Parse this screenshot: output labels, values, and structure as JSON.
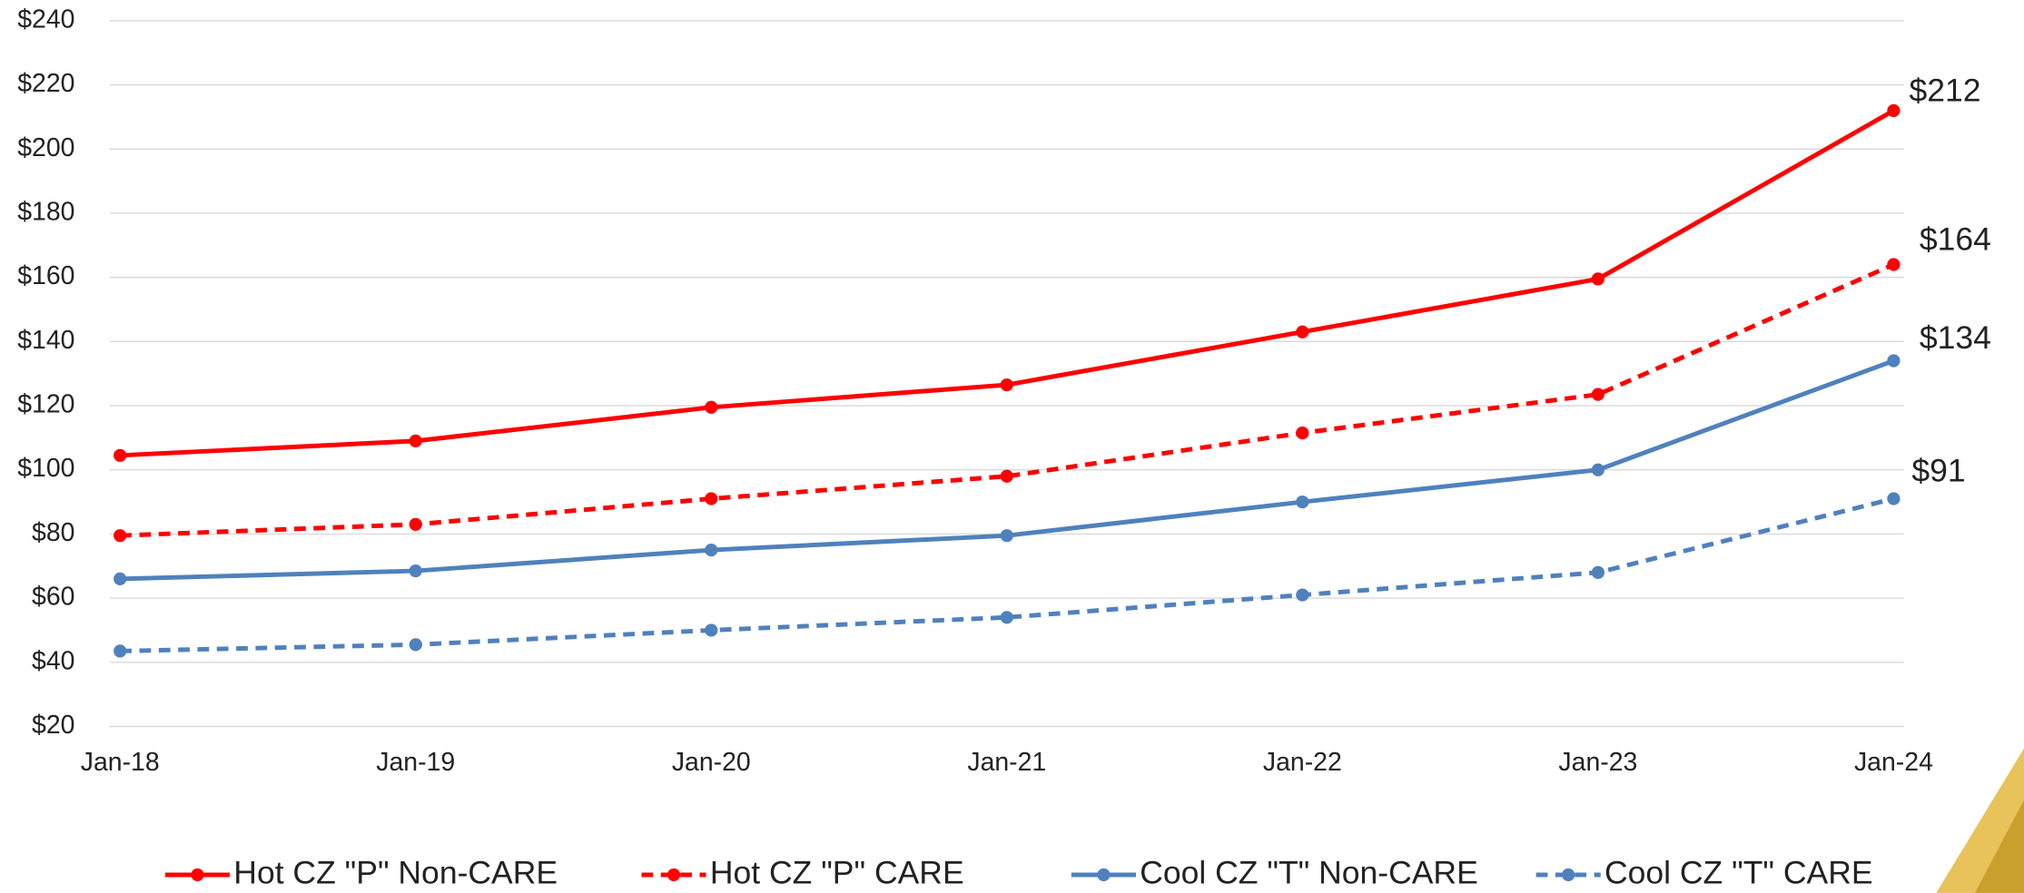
{
  "chart_data": {
    "type": "line",
    "categories": [
      "Jan-18",
      "Jan-19",
      "Jan-20",
      "Jan-21",
      "Jan-22",
      "Jan-23",
      "Jan-24"
    ],
    "series": [
      {
        "name": "Hot CZ \"P\" Non-CARE",
        "color": "#ff0000",
        "line_style": "solid",
        "values": [
          104.5,
          109,
          119.5,
          126.5,
          143,
          159.5,
          212
        ],
        "value_labels": [
          null,
          null,
          null,
          null,
          null,
          null,
          "$212"
        ]
      },
      {
        "name": "Hot CZ \"P\" CARE",
        "color": "#ff0000",
        "line_style": "dashed",
        "values": [
          79.5,
          83,
          91,
          98,
          111.5,
          123.5,
          164
        ],
        "value_labels": [
          null,
          null,
          null,
          null,
          null,
          null,
          "$164"
        ]
      },
      {
        "name": "Cool CZ \"T\" Non-CARE",
        "color": "#4f81bd",
        "line_style": "solid",
        "values": [
          66,
          68.5,
          75,
          79.5,
          90,
          100,
          134
        ],
        "value_labels": [
          null,
          null,
          null,
          null,
          null,
          null,
          "$134"
        ]
      },
      {
        "name": "Cool CZ \"T\" CARE",
        "color": "#4f81bd",
        "line_style": "dashed",
        "values": [
          43.5,
          45.5,
          50,
          54,
          61,
          68,
          91
        ],
        "value_labels": [
          null,
          null,
          null,
          null,
          null,
          null,
          "$91"
        ]
      }
    ],
    "ylim": [
      20,
      240
    ],
    "yticks": [
      {
        "value": 20,
        "label": "$20"
      },
      {
        "value": 40,
        "label": "$40"
      },
      {
        "value": 60,
        "label": "$60"
      },
      {
        "value": 80,
        "label": "$80"
      },
      {
        "value": 100,
        "label": "$100"
      },
      {
        "value": 120,
        "label": "$120"
      },
      {
        "value": 140,
        "label": "$140"
      },
      {
        "value": 160,
        "label": "$160"
      },
      {
        "value": 180,
        "label": "$180"
      },
      {
        "value": 200,
        "label": "$200"
      },
      {
        "value": 220,
        "label": "$220"
      },
      {
        "value": 240,
        "label": "$240"
      }
    ],
    "grid": true,
    "legend": "bottom"
  }
}
